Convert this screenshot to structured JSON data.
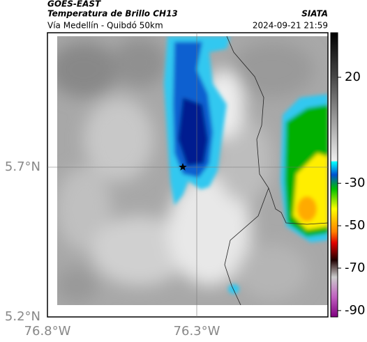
{
  "header": {
    "title": "GOES-EAST",
    "subtitle": "Temperatura de Brillo CH13",
    "source": "SIATA",
    "route": "Vía Medellín - Quibdó 50km",
    "datetime": "2024-09-21 21:59"
  },
  "map": {
    "lat_labels": [
      "5.7°N",
      "5.2°N"
    ],
    "lon_labels": [
      "76.8°W",
      "76.3°W"
    ]
  },
  "colorbar": {
    "lim": [
      41,
      -93
    ],
    "ticks": [
      20,
      -30,
      -50,
      -70,
      -90
    ]
  }
}
